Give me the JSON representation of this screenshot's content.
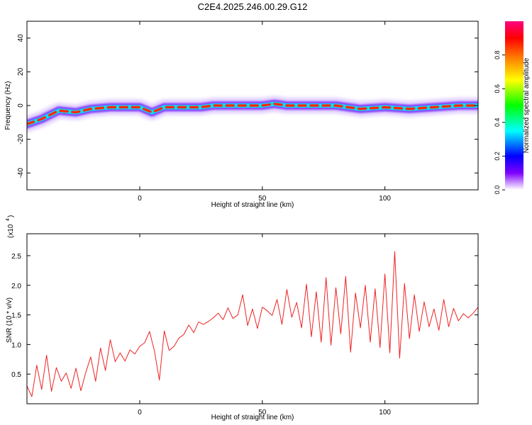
{
  "title": "C2E4.2025.246.00.29.G12",
  "chart_data": [
    {
      "type": "heatmap",
      "title": "C2E4.2025.246.00.29.G12",
      "xlabel": "Height of straight line (km)",
      "ylabel": "Frequency (Hz)",
      "xlim": [
        -46,
        138
      ],
      "ylim": [
        -50,
        50
      ],
      "x_ticks": [
        0,
        50,
        100
      ],
      "x_tick_labels": [
        "0",
        "50",
        "100"
      ],
      "y_ticks": [
        40,
        20,
        0,
        -20,
        -40
      ],
      "y_tick_labels": [
        "40",
        "20",
        "0",
        "-20",
        "-40"
      ],
      "ridge_frequency_hz": [
        [
          -46,
          -11
        ],
        [
          -40,
          -8
        ],
        [
          -33,
          -3
        ],
        [
          -26,
          -4
        ],
        [
          -20,
          -2
        ],
        [
          -12,
          -1
        ],
        [
          0,
          -1
        ],
        [
          5,
          -4
        ],
        [
          10,
          -1
        ],
        [
          25,
          -1
        ],
        [
          30,
          0
        ],
        [
          40,
          0
        ],
        [
          50,
          0
        ],
        [
          55,
          1
        ],
        [
          60,
          0
        ],
        [
          70,
          0
        ],
        [
          80,
          0
        ],
        [
          90,
          -2
        ],
        [
          100,
          -1
        ],
        [
          110,
          -2
        ],
        [
          120,
          -1
        ],
        [
          130,
          0
        ],
        [
          138,
          0
        ]
      ],
      "colorbar": {
        "label": "Normalized spectral amplitude",
        "range": [
          0,
          1
        ],
        "ticks": [
          0.0,
          0.2,
          0.4,
          0.6,
          0.8
        ],
        "tick_labels": [
          "0.0",
          "0.2",
          "0.4",
          "0.6",
          "0.8"
        ],
        "colormap": [
          "#ffffff",
          "#7f00ff",
          "#0000ff",
          "#00ffff",
          "#00ff00",
          "#ffff00",
          "#ff8000",
          "#ff0000",
          "#ff0080"
        ]
      }
    },
    {
      "type": "line",
      "xlabel": "Height of straight line (km)",
      "ylabel": "SNR (10 * v/v)",
      "y_multiplier_label": "(x10",
      "y_multiplier_exp": "4",
      "xlim": [
        -46,
        138
      ],
      "ylim": [
        0,
        28700
      ],
      "x_ticks": [
        0,
        50,
        100
      ],
      "x_tick_labels": [
        "0",
        "50",
        "100"
      ],
      "y_ticks": [
        5000,
        10000,
        15000,
        20000,
        25000
      ],
      "y_tick_labels": [
        "0.5",
        "1.0",
        "1.5",
        "2.0",
        "2.5"
      ],
      "series": [
        {
          "name": "SNR",
          "color": "#ee2222",
          "x": [
            -46,
            -44,
            -42,
            -40,
            -38,
            -36,
            -34,
            -32,
            -30,
            -28,
            -26,
            -24,
            -22,
            -20,
            -18,
            -16,
            -14,
            -12,
            -10,
            -8,
            -6,
            -4,
            -2,
            0,
            2,
            4,
            6,
            8,
            10,
            12,
            14,
            16,
            18,
            20,
            22,
            24,
            26,
            28,
            30,
            32,
            34,
            36,
            38,
            40,
            42,
            44,
            46,
            48,
            50,
            52,
            54,
            56,
            58,
            60,
            62,
            64,
            66,
            68,
            70,
            72,
            74,
            76,
            78,
            80,
            82,
            84,
            86,
            88,
            90,
            92,
            94,
            96,
            98,
            100,
            102,
            104,
            106,
            108,
            110,
            112,
            114,
            116,
            118,
            120,
            122,
            124,
            126,
            128,
            130,
            132,
            134,
            136,
            138
          ],
          "values": [
            3000,
            1200,
            6500,
            2400,
            8200,
            2100,
            6100,
            3800,
            5200,
            2600,
            6000,
            2200,
            5300,
            7900,
            3800,
            9400,
            5600,
            10800,
            7100,
            8600,
            7200,
            9100,
            8400,
            9700,
            10300,
            12200,
            8900,
            4000,
            12300,
            9000,
            9700,
            11100,
            11700,
            13300,
            12000,
            13800,
            13400,
            13900,
            14500,
            15300,
            14200,
            16200,
            14400,
            15000,
            18400,
            13200,
            16000,
            12700,
            16300,
            15700,
            14900,
            17600,
            13400,
            19300,
            14600,
            17100,
            12800,
            20200,
            11300,
            18900,
            10400,
            21300,
            9900,
            19600,
            11800,
            21500,
            8700,
            18700,
            12800,
            20000,
            10400,
            19400,
            9500,
            21900,
            8600,
            25700,
            7700,
            20300,
            11000,
            18400,
            12200,
            17200,
            13000,
            16000,
            12400,
            17600,
            13000,
            16100,
            14000,
            15200,
            14500,
            15300,
            16300
          ]
        }
      ]
    }
  ]
}
